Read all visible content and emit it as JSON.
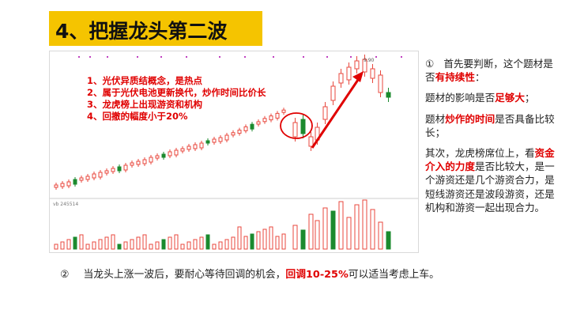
{
  "slide": {
    "title": "4、把握龙头第二波",
    "chart_points": [
      "1、光伏异质结概念，是热点",
      "2、属于光伏电池更新换代，炒作时间比价长",
      "3、龙虎榜上出现游资和机构",
      "4、回撤的幅度小于20%"
    ],
    "chart_labels": {
      "peak": "9.90",
      "volume": "vb 245514"
    },
    "right": {
      "p1_num": "①",
      "p1_pre": "首先要判断，这个题材是否",
      "p1_hl": "有持续性",
      "p1_post": "：",
      "p2_pre": "题材的影响是否",
      "p2_hl": "足够大",
      "p2_post": "；",
      "p3_pre": "题材",
      "p3_hl": "炒作的时间",
      "p3_post": "是否具备比较长；",
      "p4_pre": "其次，龙虎榜席位上，看",
      "p4_hl": "资金介入的力度",
      "p4_post": "是否比较大，是一个游资还是几个游资合力，是短线游资还是波段游资，还是机构和游资一起出现合力。"
    },
    "bottom": {
      "num": "②",
      "pre": "当龙头上涨一波后，要耐心等待回调的机会，",
      "hl": "回调10-25%",
      "post": "可以适当考虑上车。"
    },
    "colors": {
      "title_bg": "#f5c400",
      "up": "#e8473c",
      "down": "#1b8a2e",
      "highlight": "#e00000"
    }
  }
}
